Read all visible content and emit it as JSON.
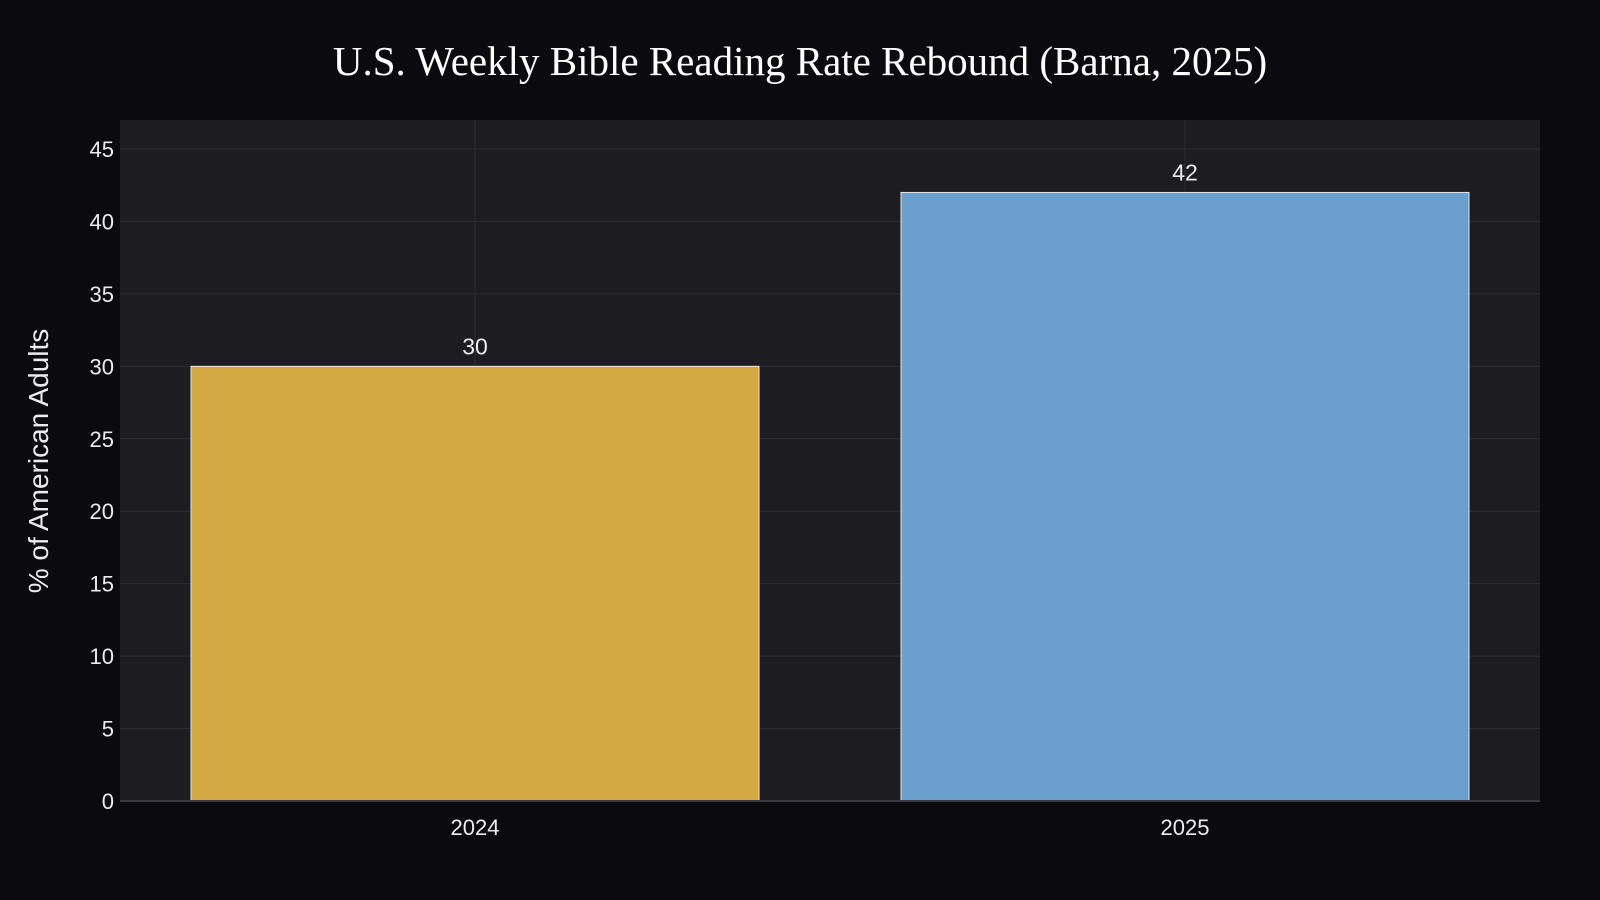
{
  "chart_data": {
    "type": "bar",
    "title": "U.S. Weekly Bible Reading Rate Rebound (Barna, 2025)",
    "xlabel": "",
    "ylabel": "% of American Adults",
    "categories": [
      "2024",
      "2025"
    ],
    "values": [
      30,
      42
    ],
    "data_labels": [
      "30",
      "42"
    ],
    "ylim": [
      0,
      47
    ],
    "yticks": [
      0,
      5,
      10,
      15,
      20,
      25,
      30,
      35,
      40,
      45
    ],
    "bar_colors": [
      "#d4a843",
      "#6b9fcc"
    ],
    "grid": true,
    "legend": "none"
  },
  "colors": {
    "page_background": "#0b0b0f",
    "plot_background": "#1c1c21",
    "grid": "#2c2c33",
    "text": "#ececf0",
    "bar_outline": "#e6e6ea"
  }
}
